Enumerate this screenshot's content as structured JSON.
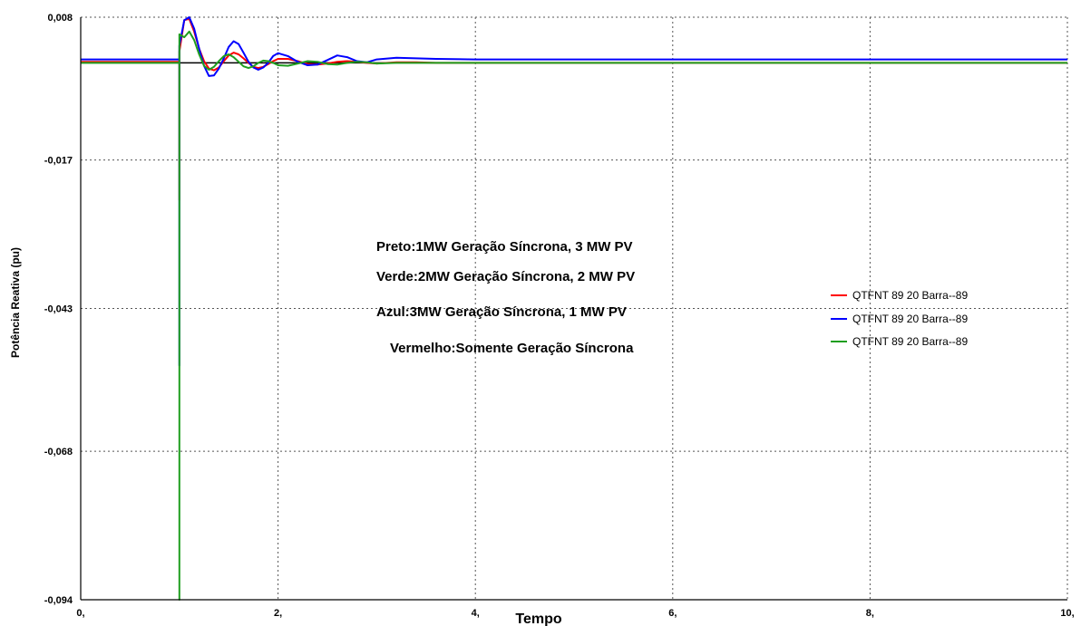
{
  "chart_data": {
    "type": "line",
    "xlabel": "Tempo",
    "ylabel": "Potência Reativa (pu)",
    "xlim": [
      0,
      10
    ],
    "ylim": [
      -0.094,
      0.008
    ],
    "x_ticks": [
      "0,",
      "2,",
      "4,",
      "6,",
      "8,",
      "10,"
    ],
    "y_ticks": [
      "0,008",
      "-0,017",
      "-0,043",
      "-0,068",
      "-0,094"
    ],
    "grid": true,
    "legend_position": "right",
    "annotations": [
      "Preto:1MW Geração Síncrona, 3 MW PV",
      "Verde:2MW Geração Síncrona, 2 MW PV",
      "Azul:3MW Geração Síncrona, 1 MW PV",
      "Vermelho:Somente Geração Síncrona"
    ],
    "series": [
      {
        "name": "QTFNT     89 20 Barra--89",
        "color": "#ff0000",
        "x": [
          0,
          1.0,
          1.0,
          1.0,
          1.05,
          1.1,
          1.15,
          1.2,
          1.25,
          1.3,
          1.35,
          1.4,
          1.45,
          1.5,
          1.55,
          1.6,
          1.65,
          1.7,
          1.75,
          1.8,
          1.85,
          1.9,
          1.95,
          2.0,
          2.1,
          2.2,
          2.3,
          2.4,
          2.5,
          2.6,
          2.7,
          2.8,
          2.9,
          3.0,
          3.2,
          3.4,
          3.6,
          4.0,
          5.0,
          10.0
        ],
        "y": [
          0.0002,
          0.0002,
          -0.024,
          0.002,
          0.0075,
          0.0077,
          0.0055,
          0.0025,
          0.0003,
          -0.001,
          -0.0013,
          -0.0008,
          0.0003,
          0.0013,
          0.0018,
          0.0015,
          0.0008,
          0.0,
          -0.0007,
          -0.0009,
          -0.0007,
          -0.0002,
          0.0003,
          0.0007,
          0.0007,
          0.0003,
          -0.0002,
          -0.0003,
          -0.0001,
          0.0002,
          0.0003,
          0.0002,
          0.0,
          -0.0001,
          0.0001,
          0.0001,
          0.0,
          0.0,
          0.0,
          0.0
        ]
      },
      {
        "name": "QTFNT     89 20 Barra--89",
        "color": "#0000ff",
        "x": [
          0,
          1.0,
          1.0,
          1.0,
          1.05,
          1.1,
          1.15,
          1.2,
          1.25,
          1.3,
          1.35,
          1.4,
          1.45,
          1.5,
          1.55,
          1.6,
          1.65,
          1.7,
          1.75,
          1.8,
          1.85,
          1.9,
          1.95,
          2.0,
          2.1,
          2.2,
          2.3,
          2.4,
          2.5,
          2.6,
          2.7,
          2.8,
          2.9,
          3.0,
          3.2,
          3.4,
          3.6,
          4.0,
          5.0,
          10.0
        ],
        "y": [
          0.0006,
          0.0006,
          -0.053,
          0.003,
          0.0075,
          0.008,
          0.006,
          0.0025,
          -0.0005,
          -0.0023,
          -0.0022,
          -0.001,
          0.0008,
          0.0028,
          0.0038,
          0.0033,
          0.0018,
          0.0002,
          -0.0008,
          -0.0012,
          -0.0008,
          0.0,
          0.0012,
          0.0017,
          0.0012,
          0.0002,
          -0.0004,
          -0.0003,
          0.0005,
          0.0013,
          0.001,
          0.0003,
          0.0001,
          0.0006,
          0.0009,
          0.0008,
          0.0007,
          0.0006,
          0.0006,
          0.0006
        ]
      },
      {
        "name": "QTFNT     89 20 Barra--89",
        "color": "#1f9e1f",
        "x": [
          0,
          1.0,
          1.0,
          1.0,
          1.05,
          1.1,
          1.15,
          1.2,
          1.25,
          1.3,
          1.35,
          1.4,
          1.45,
          1.5,
          1.55,
          1.6,
          1.65,
          1.7,
          1.75,
          1.8,
          1.85,
          1.9,
          1.95,
          2.0,
          2.1,
          2.2,
          2.3,
          2.4,
          2.5,
          2.6,
          2.7,
          2.8,
          2.9,
          3.0,
          3.2,
          3.4,
          3.6,
          4.0,
          5.0,
          10.0
        ],
        "y": [
          0.0,
          0.0,
          -0.094,
          0.005,
          0.0045,
          0.0055,
          0.004,
          0.0015,
          -0.0005,
          -0.0012,
          -0.0007,
          0.0003,
          0.0012,
          0.0015,
          0.001,
          0.0002,
          -0.0006,
          -0.0009,
          -0.0006,
          0.0,
          0.0004,
          0.0003,
          0.0,
          -0.0004,
          -0.0005,
          -0.0001,
          0.0003,
          0.0002,
          -0.0002,
          -0.0003,
          0.0,
          0.0002,
          0.0001,
          -0.0001,
          0.0,
          0.0,
          0.0,
          0.0,
          0.0,
          0.0
        ]
      },
      {
        "name": "",
        "color": "#000000",
        "x": [
          0,
          10.0
        ],
        "y": [
          0.0,
          0.0
        ]
      }
    ]
  }
}
